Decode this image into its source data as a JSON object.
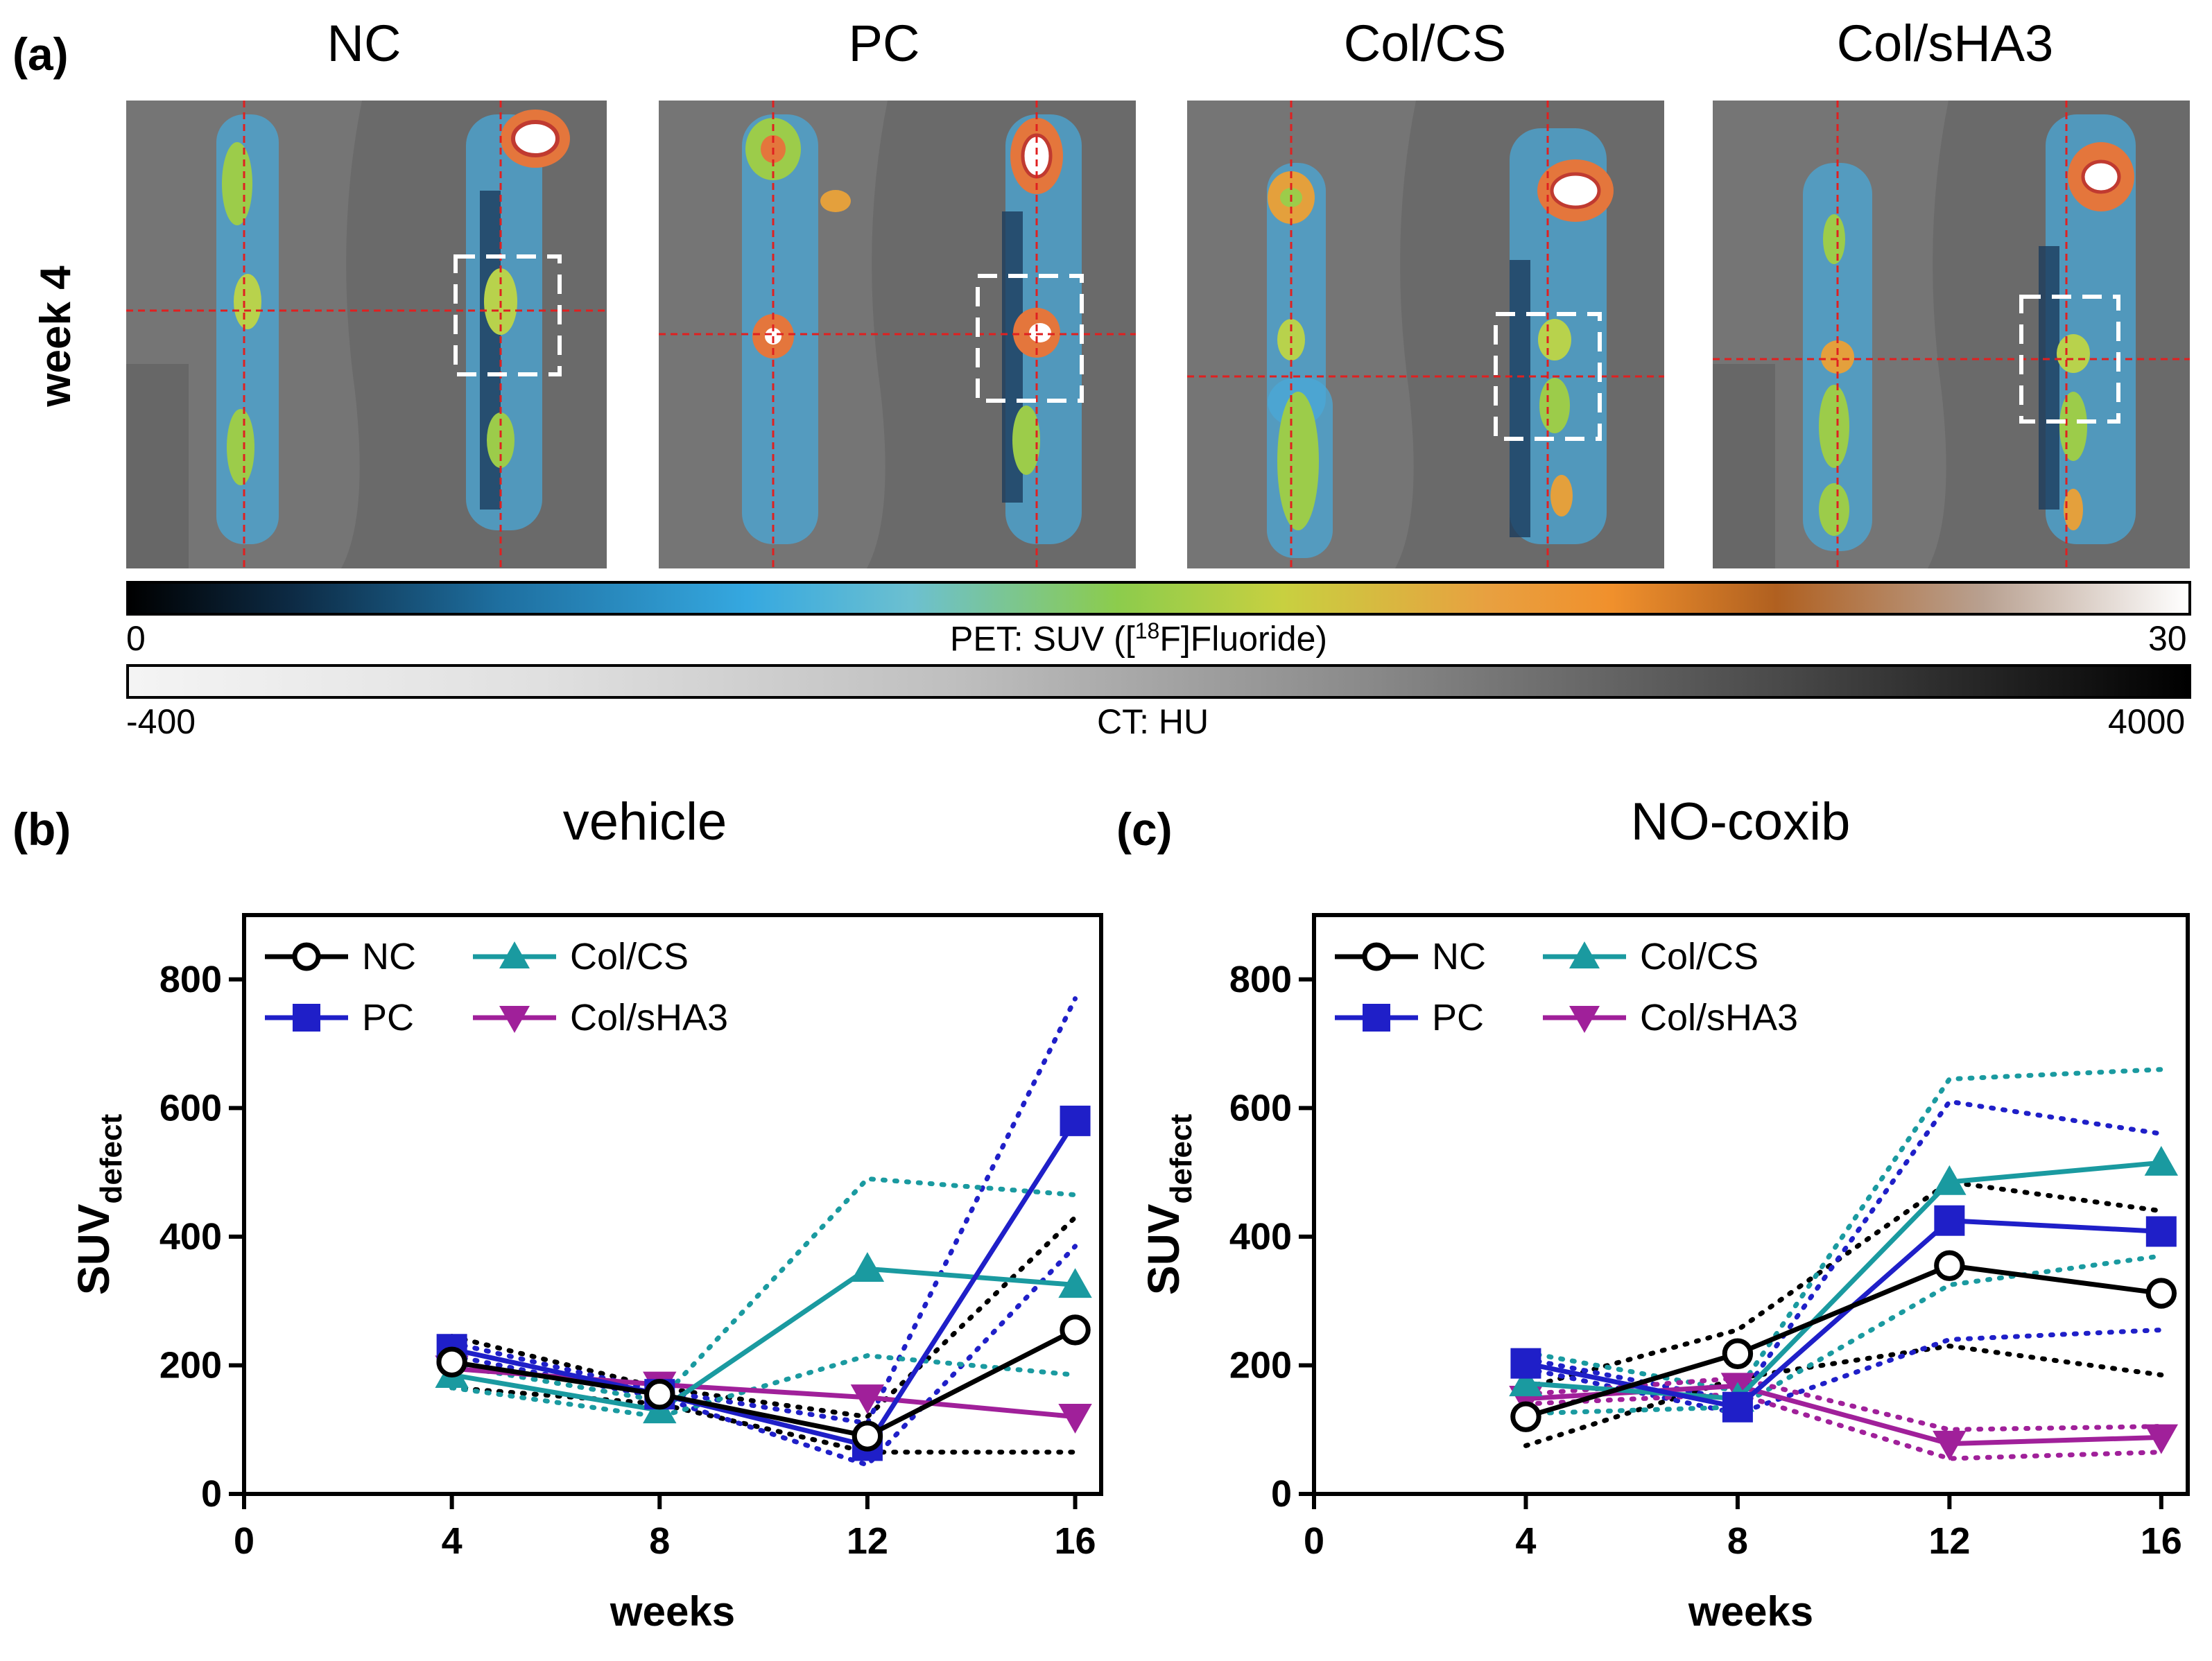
{
  "figure": {
    "panel_a": {
      "letter": "(a)",
      "row_label": "week 4",
      "columns": [
        "NC",
        "PC",
        "Col/CS",
        "Col/sHA3"
      ]
    },
    "pet_colorbar": {
      "min": "0",
      "max": "30",
      "label_pre": "PET: SUV ([",
      "label_sup": "18",
      "label_post": "F]Fluoride)"
    },
    "ct_colorbar": {
      "min": "-400",
      "max": "4000",
      "label": "CT: HU"
    },
    "panel_b": {
      "letter": "(b)",
      "title": "vehicle"
    },
    "panel_c": {
      "letter": "(c)",
      "title": "NO-coxib"
    }
  },
  "chart_data": [
    {
      "type": "line",
      "title": "vehicle",
      "xlabel": "weeks",
      "ylabel_main": "SUV",
      "ylabel_sub": "defect",
      "xlim": [
        0,
        16.5
      ],
      "ylim": [
        0,
        900
      ],
      "xticks": [
        0,
        4,
        8,
        12,
        16
      ],
      "yticks": [
        0,
        200,
        400,
        600,
        800
      ],
      "legend": "top-left",
      "x": [
        4,
        8,
        12,
        16
      ],
      "series": [
        {
          "name": "NC",
          "marker": "circle-open",
          "color": "#000000",
          "values": [
            205,
            155,
            90,
            255
          ],
          "ci_upper": [
            245,
            165,
            120,
            430
          ],
          "ci_lower": [
            165,
            140,
            65,
            65
          ]
        },
        {
          "name": "PC",
          "marker": "square",
          "color": "#1f1fc8",
          "values": [
            225,
            155,
            75,
            580
          ],
          "ci_upper": [
            235,
            160,
            110,
            770
          ],
          "ci_lower": [
            215,
            150,
            45,
            385
          ]
        },
        {
          "name": "Col/CS",
          "marker": "triangle-up",
          "color": "#1a9aa0",
          "values": [
            185,
            130,
            350,
            325
          ],
          "ci_upper": [
            200,
            145,
            490,
            465
          ],
          "ci_lower": [
            165,
            120,
            215,
            185
          ]
        },
        {
          "name": "Col/sHA3",
          "marker": "triangle-down",
          "color": "#a0209a",
          "values": [
            195,
            170,
            150,
            120
          ],
          "ci_upper": null,
          "ci_lower": null
        }
      ]
    },
    {
      "type": "line",
      "title": "NO-coxib",
      "xlabel": "weeks",
      "ylabel_main": "SUV",
      "ylabel_sub": "defect",
      "xlim": [
        0,
        16.5
      ],
      "ylim": [
        0,
        900
      ],
      "xticks": [
        0,
        4,
        8,
        12,
        16
      ],
      "yticks": [
        0,
        200,
        400,
        600,
        800
      ],
      "legend": "top-left",
      "x": [
        4,
        8,
        12,
        16
      ],
      "series": [
        {
          "name": "NC",
          "marker": "circle-open",
          "color": "#000000",
          "values": [
            120,
            218,
            355,
            312
          ],
          "ci_upper": [
            165,
            255,
            485,
            440
          ],
          "ci_lower": [
            75,
            180,
            230,
            185
          ]
        },
        {
          "name": "PC",
          "marker": "square",
          "color": "#1f1fc8",
          "values": [
            203,
            135,
            425,
            408
          ],
          "ci_upper": [
            210,
            145,
            610,
            560
          ],
          "ci_lower": [
            195,
            125,
            240,
            255
          ]
        },
        {
          "name": "Col/CS",
          "marker": "triangle-up",
          "color": "#1a9aa0",
          "values": [
            172,
            148,
            485,
            515
          ],
          "ci_upper": [
            220,
            160,
            645,
            660
          ],
          "ci_lower": [
            125,
            135,
            325,
            370
          ]
        },
        {
          "name": "Col/sHA3",
          "marker": "triangle-down",
          "color": "#a0209a",
          "values": [
            148,
            168,
            78,
            88
          ],
          "ci_upper": [
            155,
            180,
            100,
            105
          ],
          "ci_lower": [
            140,
            155,
            55,
            65
          ]
        }
      ]
    }
  ]
}
